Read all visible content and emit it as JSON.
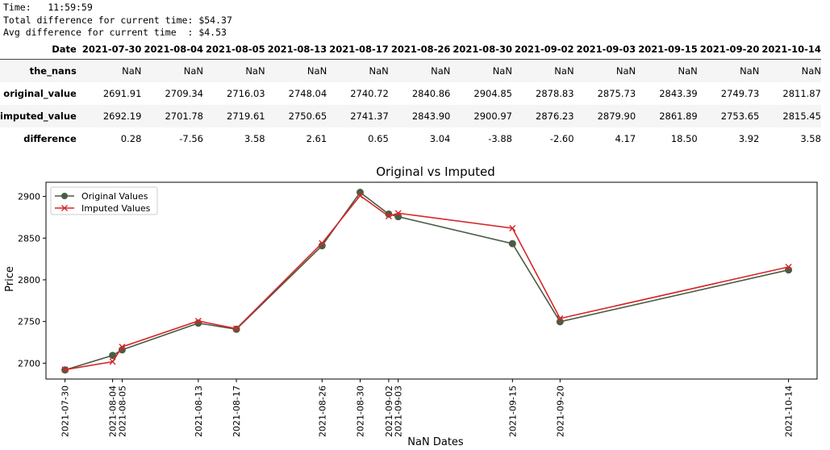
{
  "console": {
    "time_line": "Time:   11:59:59",
    "total_line": "Total difference for current time: $54.37",
    "avg_line": "Avg difference for current time  : $4.53"
  },
  "table": {
    "index_header": "Date",
    "columns": [
      "2021-07-30",
      "2021-08-04",
      "2021-08-05",
      "2021-08-13",
      "2021-08-17",
      "2021-08-26",
      "2021-08-30",
      "2021-09-02",
      "2021-09-03",
      "2021-09-15",
      "2021-09-20",
      "2021-10-14"
    ],
    "rows": [
      {
        "label": "the_nans",
        "values": [
          "NaN",
          "NaN",
          "NaN",
          "NaN",
          "NaN",
          "NaN",
          "NaN",
          "NaN",
          "NaN",
          "NaN",
          "NaN",
          "NaN"
        ]
      },
      {
        "label": "original_value",
        "values": [
          "2691.91",
          "2709.34",
          "2716.03",
          "2748.04",
          "2740.72",
          "2840.86",
          "2904.85",
          "2878.83",
          "2875.73",
          "2843.39",
          "2749.73",
          "2811.87"
        ]
      },
      {
        "label": "imputed_value",
        "values": [
          "2692.19",
          "2701.78",
          "2719.61",
          "2750.65",
          "2741.37",
          "2843.90",
          "2900.97",
          "2876.23",
          "2879.90",
          "2861.89",
          "2753.65",
          "2815.45"
        ]
      },
      {
        "label": "difference",
        "values": [
          "0.28",
          "-7.56",
          "3.58",
          "2.61",
          "0.65",
          "3.04",
          "-3.88",
          "-2.60",
          "4.17",
          "18.50",
          "3.92",
          "3.58"
        ]
      }
    ]
  },
  "chart_data": {
    "type": "line",
    "title": "Original vs Imputed",
    "xlabel": "NaN Dates",
    "ylabel": "Price",
    "x": [
      "2021-07-30",
      "2021-08-04",
      "2021-08-05",
      "2021-08-13",
      "2021-08-17",
      "2021-08-26",
      "2021-08-30",
      "2021-09-02",
      "2021-09-03",
      "2021-09-15",
      "2021-09-20",
      "2021-10-14"
    ],
    "x_range": [
      "2021-07-28",
      "2021-10-17"
    ],
    "yticks": [
      2700,
      2750,
      2800,
      2850,
      2900
    ],
    "ylim": [
      2681,
      2917
    ],
    "legend_position": "top-left",
    "grid": false,
    "series": [
      {
        "name": "Original Values",
        "color": "#4b5c45",
        "marker": "circle",
        "values": [
          2691.91,
          2709.34,
          2716.03,
          2748.04,
          2740.72,
          2840.86,
          2904.85,
          2878.83,
          2875.73,
          2843.39,
          2749.73,
          2811.87
        ]
      },
      {
        "name": "Imputed Values",
        "color": "#d62728",
        "marker": "x",
        "values": [
          2692.19,
          2701.78,
          2719.61,
          2750.65,
          2741.37,
          2843.9,
          2900.97,
          2876.23,
          2879.9,
          2861.89,
          2753.65,
          2815.45
        ]
      }
    ]
  }
}
